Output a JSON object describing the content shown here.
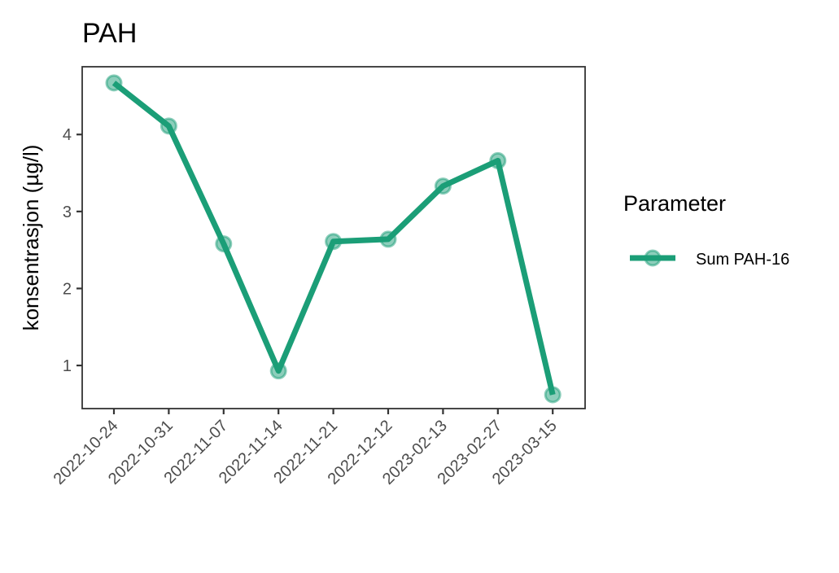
{
  "chart_data": {
    "type": "line",
    "title": "PAH",
    "xlabel": "",
    "ylabel": "konsentrasjon (µg/l)",
    "categories": [
      "2022-10-24",
      "2022-10-31",
      "2022-11-07",
      "2022-11-14",
      "2022-11-21",
      "2022-12-12",
      "2023-02-13",
      "2023-02-27",
      "2023-03-15"
    ],
    "series": [
      {
        "name": "Sum PAH-16",
        "color": "#1b9e77",
        "values": [
          4.67,
          4.11,
          2.58,
          0.93,
          2.61,
          2.64,
          3.33,
          3.66,
          0.62
        ]
      }
    ],
    "yticks": [
      1,
      2,
      3,
      4
    ],
    "ylim": [
      0.44,
      4.88
    ],
    "grid": false,
    "legend": {
      "title": "Parameter",
      "position": "right"
    }
  }
}
